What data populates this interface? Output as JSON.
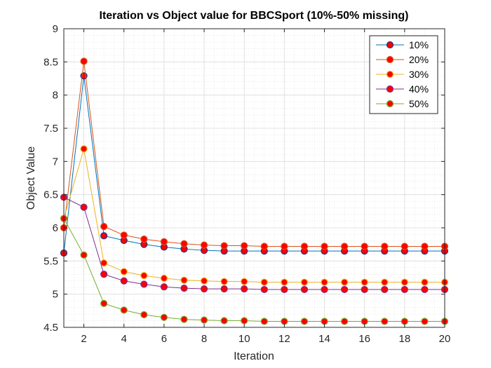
{
  "chart_data": {
    "type": "line",
    "title": "Iteration vs Object value for BBCSport (10%-50% missing)",
    "xlabel": "Iteration",
    "ylabel": "Object Value",
    "xlim": [
      1,
      20
    ],
    "ylim": [
      4.5,
      9
    ],
    "x_ticks": [
      2,
      4,
      6,
      8,
      10,
      12,
      14,
      16,
      18,
      20
    ],
    "y_ticks": [
      4.5,
      5,
      5.5,
      6,
      6.5,
      7,
      7.5,
      8,
      8.5,
      9
    ],
    "grid": true,
    "minor_grid": true,
    "legend_position": "top-right",
    "marker_face_color": "#ff0000",
    "x": [
      1,
      2,
      3,
      4,
      5,
      6,
      7,
      8,
      9,
      10,
      11,
      12,
      13,
      14,
      15,
      16,
      17,
      18,
      19,
      20
    ],
    "series": [
      {
        "name": "10%",
        "color": "#0072bd",
        "marker_edge": "#1f3a8a",
        "values": [
          5.62,
          8.29,
          5.88,
          5.81,
          5.75,
          5.71,
          5.68,
          5.66,
          5.65,
          5.65,
          5.65,
          5.65,
          5.65,
          5.65,
          5.65,
          5.65,
          5.65,
          5.65,
          5.65,
          5.65
        ]
      },
      {
        "name": "20%",
        "color": "#d95319",
        "marker_edge": "#d95319",
        "values": [
          6.0,
          8.51,
          6.02,
          5.89,
          5.83,
          5.79,
          5.76,
          5.74,
          5.73,
          5.73,
          5.72,
          5.72,
          5.72,
          5.72,
          5.72,
          5.72,
          5.72,
          5.72,
          5.72,
          5.72
        ]
      },
      {
        "name": "30%",
        "color": "#edb120",
        "marker_edge": "#edb120",
        "values": [
          6.14,
          7.19,
          5.47,
          5.34,
          5.28,
          5.24,
          5.21,
          5.2,
          5.19,
          5.19,
          5.18,
          5.18,
          5.18,
          5.18,
          5.18,
          5.18,
          5.18,
          5.18,
          5.18,
          5.18
        ]
      },
      {
        "name": "40%",
        "color": "#7e2f8e",
        "marker_edge": "#7e2f8e",
        "values": [
          6.46,
          6.31,
          5.3,
          5.2,
          5.15,
          5.11,
          5.09,
          5.08,
          5.08,
          5.08,
          5.07,
          5.07,
          5.07,
          5.07,
          5.07,
          5.07,
          5.07,
          5.07,
          5.07,
          5.07
        ]
      },
      {
        "name": "50%",
        "color": "#77ac30",
        "marker_edge": "#77ac30",
        "values": [
          6.14,
          5.59,
          4.86,
          4.76,
          4.69,
          4.65,
          4.62,
          4.61,
          4.6,
          4.6,
          4.59,
          4.59,
          4.59,
          4.59,
          4.59,
          4.59,
          4.59,
          4.59,
          4.59,
          4.59
        ]
      }
    ]
  }
}
